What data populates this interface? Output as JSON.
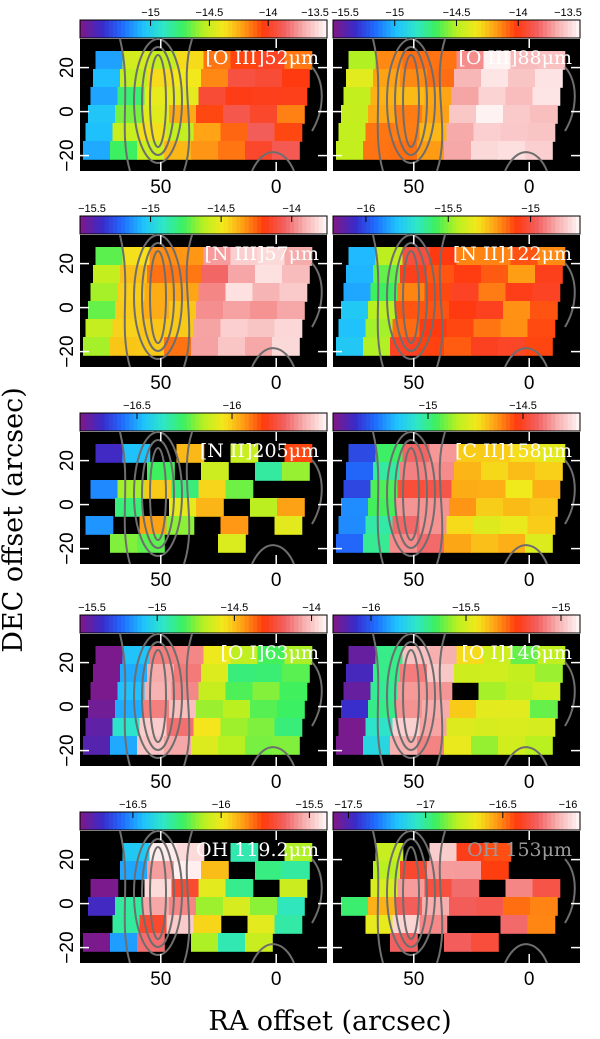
{
  "chart_data": {
    "type": "heatmap",
    "xlabel": "RA offset (arcsec)",
    "ylabel": "DEC offset (arcsec)",
    "xlim": [
      85,
      -22
    ],
    "ylim": [
      -27,
      33
    ],
    "x_ticks": [
      "50",
      "0"
    ],
    "x_tick_values": [
      50,
      0
    ],
    "y_ticks": [
      "20",
      "0",
      "−20"
    ],
    "y_tick_values": [
      20,
      0,
      -20
    ],
    "colormap": [
      "#7a1a8c",
      "#3a2bc9",
      "#1f6dff",
      "#1fc0ff",
      "#2ee6c8",
      "#3df05f",
      "#b8f020",
      "#f4e81c",
      "#ff9a14",
      "#ff3a10",
      "#f26060",
      "#f7b0b0",
      "#fff2f2"
    ],
    "panels": [
      {
        "label": "[O III]52μm",
        "label_color": "#ffffff",
        "cb_min": -15.6,
        "cb_max": -13.5,
        "cb_ticks": [
          "−15",
          "−14.5",
          "−14",
          "−13.5"
        ],
        "cb_tick_values": [
          -15,
          -14.5,
          -14,
          -13.5
        ],
        "base": 0.75,
        "peak": 0.55,
        "noise": 0.08,
        "holes": []
      },
      {
        "label": "[O III]88μm",
        "label_color": "#ffffff",
        "cb_min": -15.5,
        "cb_max": -13.5,
        "cb_ticks": [
          "−15.5",
          "−15",
          "−14.5",
          "−14",
          "−13.5"
        ],
        "cb_tick_values": [
          -15.5,
          -15,
          -14.5,
          -14,
          -13.5
        ],
        "base": 0.97,
        "peak": 0.6,
        "noise": 0.04,
        "holes": []
      },
      {
        "label": "[N III]57μm",
        "label_color": "#ffffff",
        "cb_min": -15.5,
        "cb_max": -13.75,
        "cb_ticks": [
          "−15.5",
          "−15",
          "−14.5",
          "−14"
        ],
        "cb_tick_values": [
          -15.5,
          -15,
          -14.5,
          -14
        ],
        "base": 0.93,
        "peak": 0.6,
        "noise": 0.05,
        "holes": []
      },
      {
        "label": "[N II]122μm",
        "label_color": "#ffffff",
        "cb_min": -16.2,
        "cb_max": -14.7,
        "cb_ticks": [
          "−16",
          "−15.5",
          "−15"
        ],
        "cb_tick_values": [
          -16,
          -15.5,
          -15
        ],
        "base": 0.72,
        "peak": 0.75,
        "noise": 0.06,
        "holes": []
      },
      {
        "label": "[N II]205μm",
        "label_color": "#ffffff",
        "cb_min": -16.8,
        "cb_max": -15.5,
        "cb_ticks": [
          "−16.5",
          "−16"
        ],
        "cb_tick_values": [
          -16.5,
          -16
        ],
        "base": 0.55,
        "peak": 0.55,
        "noise": 0.2,
        "holes": [
          [
            2,
            0
          ],
          [
            4,
            0
          ],
          [
            6,
            0
          ],
          [
            0,
            1
          ],
          [
            1,
            1
          ],
          [
            3,
            1
          ],
          [
            5,
            1
          ],
          [
            6,
            2
          ],
          [
            7,
            2
          ],
          [
            0,
            3
          ],
          [
            2,
            3
          ],
          [
            5,
            3
          ],
          [
            1,
            4
          ],
          [
            4,
            4
          ],
          [
            6,
            4
          ],
          [
            0,
            5
          ],
          [
            3,
            5
          ],
          [
            4,
            5
          ],
          [
            6,
            5
          ],
          [
            7,
            5
          ]
        ]
      },
      {
        "label": "[C II]158μm",
        "label_color": "#ffffff",
        "cb_min": -15.5,
        "cb_max": -14.2,
        "cb_ticks": [
          "−15",
          "−14.5"
        ],
        "cb_tick_values": [
          -15,
          -14.5
        ],
        "base": 0.6,
        "peak": 0.9,
        "noise": 0.05,
        "holes": []
      },
      {
        "label": "[O I]63μm",
        "label_color": "#ffffff",
        "cb_min": -15.5,
        "cb_max": -13.9,
        "cb_ticks": [
          "−15.5",
          "−15",
          "−14.5",
          "−14"
        ],
        "cb_tick_values": [
          -15.5,
          -15,
          -14.5,
          -14
        ],
        "base": 0.45,
        "peak": 1.0,
        "noise": 0.06,
        "holes": []
      },
      {
        "label": "[O I]146μm",
        "label_color": "#ffffff",
        "cb_min": -16.2,
        "cb_max": -14.9,
        "cb_ticks": [
          "−16",
          "−15.5",
          "−15"
        ],
        "cb_tick_values": [
          -16,
          -15.5,
          -15
        ],
        "base": 0.5,
        "peak": 1.0,
        "noise": 0.06,
        "holes": [
          [
            4,
            2
          ]
        ]
      },
      {
        "label": "OH 119.2μm",
        "label_color": "#ffffff",
        "cb_min": -16.8,
        "cb_max": -15.4,
        "cb_ticks": [
          "−16.5",
          "−16",
          "−15.5"
        ],
        "cb_tick_values": [
          -16.5,
          -16,
          -15.5
        ],
        "base": 0.45,
        "peak": 1.0,
        "noise": 0.12,
        "holes": [
          [
            0,
            0
          ],
          [
            4,
            0
          ],
          [
            6,
            0
          ],
          [
            0,
            1
          ],
          [
            5,
            1
          ],
          [
            1,
            2
          ],
          [
            6,
            2
          ],
          [
            0,
            4
          ],
          [
            5,
            4
          ],
          [
            3,
            5
          ],
          [
            7,
            5
          ]
        ]
      },
      {
        "label": "OH 153μm",
        "label_color": "#9a9a9a",
        "cb_min": -17.6,
        "cb_max": -16.0,
        "cb_ticks": [
          "−17.5",
          "−17",
          "−16.5",
          "−16"
        ],
        "cb_tick_values": [
          -17.5,
          -17,
          -16.5,
          -16
        ],
        "base": 0.78,
        "peak": 0.9,
        "noise": 0.1,
        "holes": [
          [
            0,
            0
          ],
          [
            2,
            0
          ],
          [
            6,
            0
          ],
          [
            7,
            0
          ],
          [
            0,
            1
          ],
          [
            6,
            1
          ],
          [
            7,
            1
          ],
          [
            0,
            2
          ],
          [
            5,
            2
          ],
          [
            0,
            4
          ],
          [
            4,
            4
          ],
          [
            5,
            4
          ],
          [
            0,
            5
          ],
          [
            1,
            5
          ],
          [
            3,
            5
          ],
          [
            6,
            5
          ],
          [
            7,
            5
          ]
        ]
      }
    ]
  }
}
